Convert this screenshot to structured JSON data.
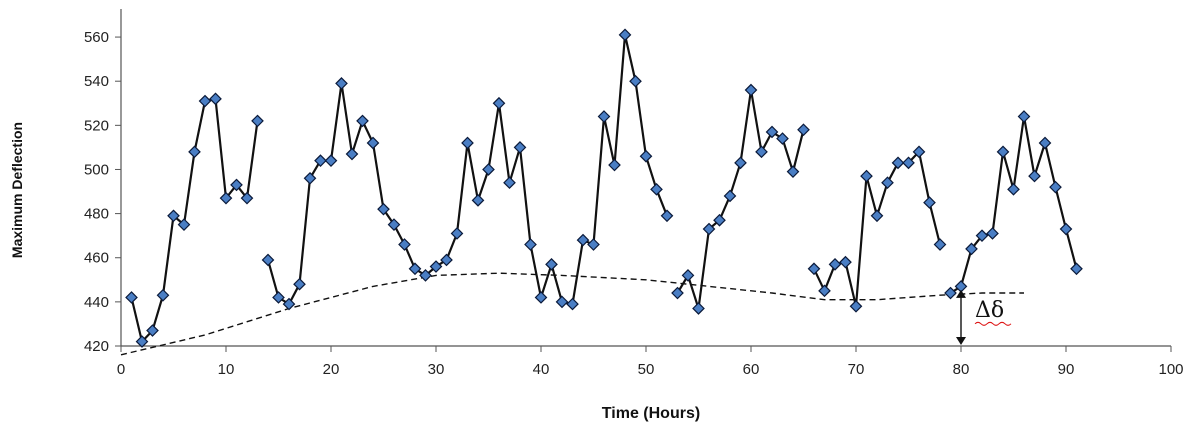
{
  "chart_data": {
    "type": "line",
    "title": "",
    "xlabel": "Time (Hours)",
    "ylabel": "Maximum Deflection",
    "xlim": [
      0,
      100
    ],
    "ylim": [
      420,
      570
    ],
    "x_ticks": [
      0,
      10,
      20,
      30,
      40,
      50,
      60,
      70,
      80,
      90,
      100
    ],
    "y_ticks": [
      420,
      440,
      460,
      480,
      500,
      520,
      540,
      560
    ],
    "grid": false,
    "legend": "none",
    "series": [
      {
        "segments": [
          [
            [
              1,
              442
            ],
            [
              2,
              422
            ],
            [
              3,
              427
            ],
            [
              4,
              443
            ],
            [
              5,
              479
            ],
            [
              6,
              475
            ],
            [
              7,
              508
            ],
            [
              8,
              531
            ],
            [
              9,
              532
            ],
            [
              10,
              487
            ],
            [
              11,
              493
            ],
            [
              12,
              487
            ],
            [
              13,
              522
            ]
          ],
          [
            [
              14,
              459
            ],
            [
              15,
              442
            ],
            [
              16,
              439
            ],
            [
              17,
              448
            ],
            [
              18,
              496
            ],
            [
              19,
              504
            ],
            [
              20,
              504
            ],
            [
              21,
              539
            ],
            [
              22,
              507
            ],
            [
              23,
              522
            ],
            [
              24,
              512
            ],
            [
              25,
              482
            ],
            [
              26,
              475
            ],
            [
              27,
              466
            ],
            [
              28,
              455
            ],
            [
              29,
              452
            ],
            [
              30,
              456
            ],
            [
              31,
              459
            ],
            [
              32,
              471
            ],
            [
              33,
              512
            ],
            [
              34,
              486
            ],
            [
              35,
              500
            ],
            [
              36,
              530
            ],
            [
              37,
              494
            ],
            [
              38,
              510
            ],
            [
              39,
              466
            ],
            [
              40,
              442
            ],
            [
              41,
              457
            ],
            [
              42,
              440
            ],
            [
              43,
              439
            ],
            [
              44,
              468
            ],
            [
              45,
              466
            ],
            [
              46,
              524
            ],
            [
              47,
              502
            ],
            [
              48,
              561
            ],
            [
              49,
              540
            ],
            [
              50,
              506
            ],
            [
              51,
              491
            ],
            [
              52,
              479
            ]
          ],
          [
            [
              53,
              444
            ],
            [
              54,
              452
            ],
            [
              55,
              437
            ],
            [
              56,
              473
            ],
            [
              57,
              477
            ],
            [
              58,
              488
            ],
            [
              59,
              503
            ],
            [
              60,
              536
            ],
            [
              61,
              508
            ],
            [
              62,
              517
            ],
            [
              63,
              514
            ],
            [
              64,
              499
            ],
            [
              65,
              518
            ]
          ],
          [
            [
              66,
              455
            ],
            [
              67,
              445
            ],
            [
              68,
              457
            ],
            [
              69,
              458
            ],
            [
              70,
              438
            ],
            [
              71,
              497
            ],
            [
              72,
              479
            ],
            [
              73,
              494
            ],
            [
              74,
              503
            ],
            [
              75,
              503
            ],
            [
              76,
              508
            ],
            [
              77,
              485
            ],
            [
              78,
              466
            ]
          ],
          [
            [
              79,
              444
            ],
            [
              80,
              447
            ],
            [
              81,
              464
            ],
            [
              82,
              470
            ],
            [
              83,
              471
            ],
            [
              84,
              508
            ],
            [
              85,
              491
            ],
            [
              86,
              524
            ],
            [
              87,
              497
            ],
            [
              88,
              512
            ],
            [
              89,
              492
            ],
            [
              90,
              473
            ],
            [
              91,
              455
            ]
          ]
        ]
      }
    ],
    "trend": [
      [
        0,
        416
      ],
      [
        8,
        425
      ],
      [
        16,
        437
      ],
      [
        24,
        447
      ],
      [
        30,
        452
      ],
      [
        36,
        453
      ],
      [
        42,
        452
      ],
      [
        50,
        450
      ],
      [
        58,
        446
      ],
      [
        62,
        444
      ],
      [
        67,
        441
      ],
      [
        72,
        441
      ],
      [
        78,
        443
      ],
      [
        82,
        444
      ],
      [
        86,
        444
      ]
    ],
    "annotation": {
      "label": "Δδ",
      "x": 80,
      "y_top": 445,
      "y_bottom": 420
    },
    "colors": {
      "marker_fill": "#4a7ec4",
      "marker_stroke": "#0b1a3a",
      "line": "#111111"
    }
  }
}
